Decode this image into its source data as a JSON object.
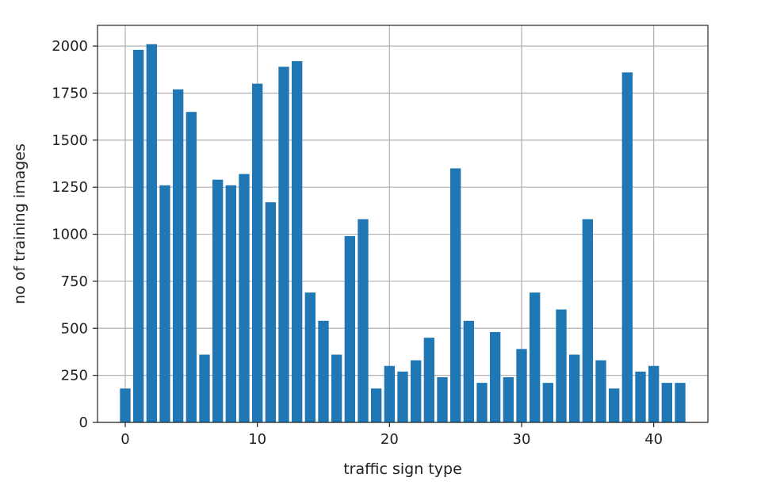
{
  "chart_data": {
    "type": "bar",
    "title": "",
    "xlabel": "traffic sign type",
    "ylabel": "no of training images",
    "x": [
      0,
      1,
      2,
      3,
      4,
      5,
      6,
      7,
      8,
      9,
      10,
      11,
      12,
      13,
      14,
      15,
      16,
      17,
      18,
      19,
      20,
      21,
      22,
      23,
      24,
      25,
      26,
      27,
      28,
      29,
      30,
      31,
      32,
      33,
      34,
      35,
      36,
      37,
      38,
      39,
      40,
      41,
      42
    ],
    "values": [
      180,
      1980,
      2010,
      1260,
      1770,
      1650,
      360,
      1290,
      1260,
      1320,
      1800,
      1170,
      1890,
      1920,
      690,
      540,
      360,
      990,
      1080,
      180,
      300,
      270,
      330,
      450,
      240,
      1350,
      540,
      210,
      480,
      240,
      390,
      690,
      210,
      600,
      360,
      1080,
      330,
      180,
      1860,
      270,
      300,
      210,
      210
    ],
    "xlim": [
      -2.1,
      44.1
    ],
    "ylim": [
      0,
      2110
    ],
    "xticks": [
      0,
      10,
      20,
      30,
      40
    ],
    "yticks": [
      0,
      250,
      500,
      750,
      1000,
      1250,
      1500,
      1750,
      2000
    ],
    "grid": true,
    "legend": "none",
    "bar_color": "#1f77b4"
  }
}
